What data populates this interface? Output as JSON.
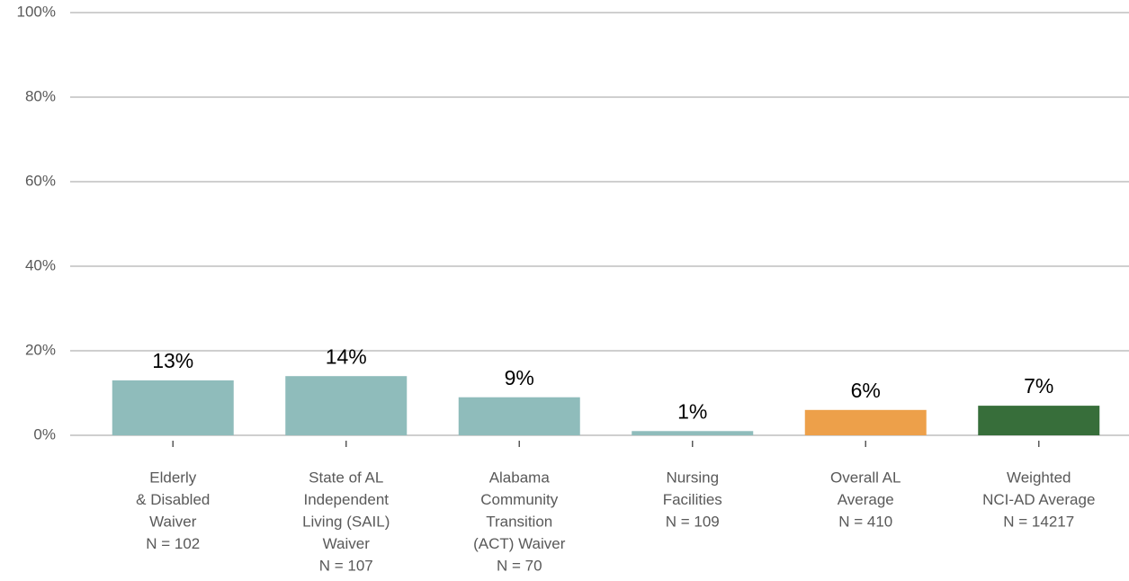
{
  "chart_data": {
    "type": "bar",
    "categories": [
      [
        "Elderly",
        "& Disabled",
        "Waiver",
        "N = 102"
      ],
      [
        "State of AL",
        "Independent",
        "Living (SAIL)",
        "Waiver",
        "N = 107"
      ],
      [
        "Alabama",
        "Community",
        "Transition",
        "(ACT) Waiver",
        "N = 70"
      ],
      [
        "Nursing",
        "Facilities",
        "N = 109"
      ],
      [
        "Overall AL",
        "Average",
        "N = 410"
      ],
      [
        "Weighted",
        "NCI-AD Average",
        "N = 14217"
      ]
    ],
    "values": [
      13,
      14,
      9,
      1,
      6,
      7
    ],
    "value_labels": [
      "13%",
      "14%",
      "9%",
      "1%",
      "6%",
      "7%"
    ],
    "colors": [
      "#8fbcbb",
      "#8fbcbb",
      "#8fbcbb",
      "#8fbcbb",
      "#eda04a",
      "#376e3a"
    ],
    "ylim": [
      0,
      100
    ],
    "yticks": [
      {
        "value": 0,
        "label": "0%"
      },
      {
        "value": 20,
        "label": "20%"
      },
      {
        "value": 40,
        "label": "40%"
      },
      {
        "value": 60,
        "label": "60%"
      },
      {
        "value": 80,
        "label": "80%"
      },
      {
        "value": 100,
        "label": "100%"
      }
    ],
    "grid": true
  }
}
